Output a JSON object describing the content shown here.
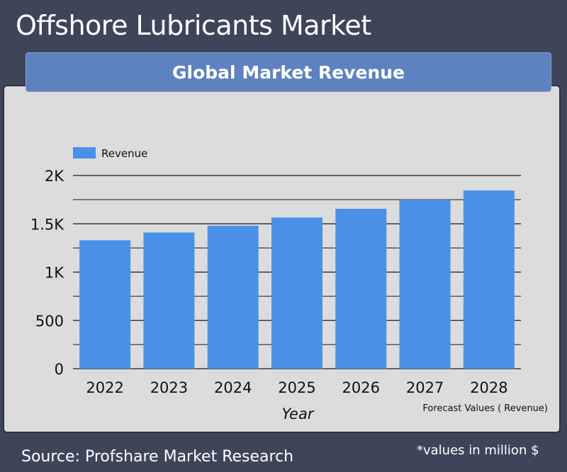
{
  "header": {
    "title": "Offshore Lubricants Market"
  },
  "banner": {
    "title": "Global Market Revenue"
  },
  "footer": {
    "source": "Source: Profshare Market Research",
    "note": "*values in million $"
  },
  "colors": {
    "bar": "#4a90e8",
    "background": "#3f4559",
    "panel": "#dcdcdc",
    "banner": "#5e82bf"
  },
  "chart_data": {
    "type": "bar",
    "categories": [
      "2022",
      "2023",
      "2024",
      "2025",
      "2026",
      "2027",
      "2028"
    ],
    "series": [
      {
        "name": "Revenue",
        "values": [
          1330,
          1410,
          1480,
          1565,
          1655,
          1750,
          1845
        ]
      }
    ],
    "xlabel": "Year",
    "ylabel": "",
    "ylim": [
      0,
      2000
    ],
    "yticks": [
      0,
      500,
      1000,
      1500,
      2000
    ],
    "ytick_labels": [
      "0",
      "500",
      "1K",
      "1.5K",
      "2K"
    ],
    "annotation": "Forecast Values ( Revenue)",
    "legend_position": "top-left",
    "grid": true
  }
}
